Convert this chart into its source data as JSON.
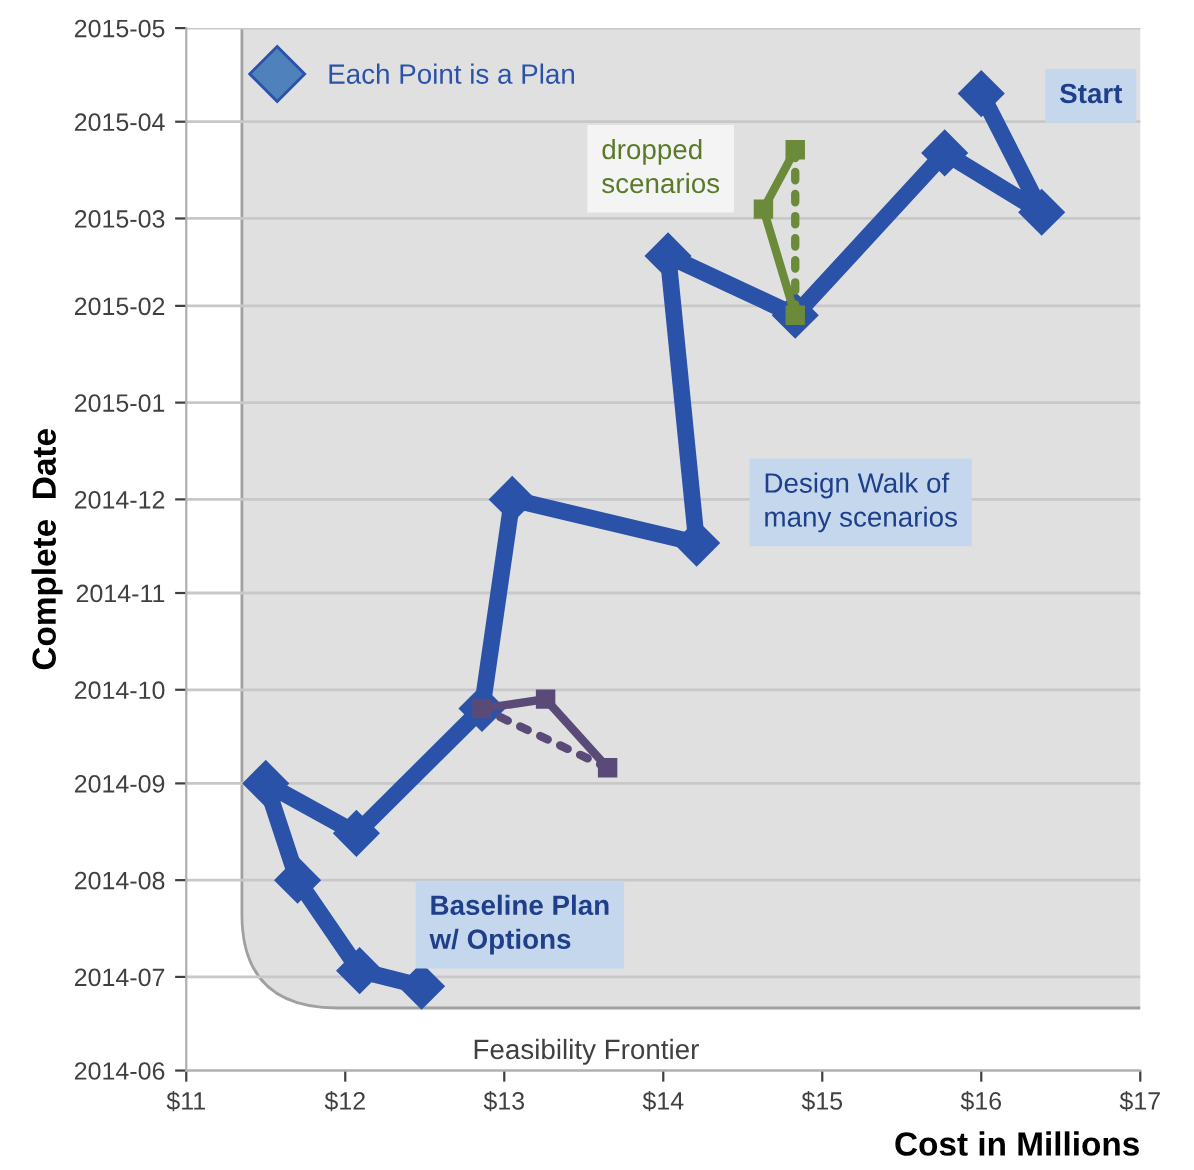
{
  "chart_data": {
    "type": "line",
    "orientation": "horizontal",
    "xlabel": "Cost in Millions",
    "ylabel": "Complete  Date",
    "xlim": [
      11,
      17
    ],
    "xticks": [
      {
        "value": 11,
        "label": "$11"
      },
      {
        "value": 12,
        "label": "$12"
      },
      {
        "value": 13,
        "label": "$13"
      },
      {
        "value": 14,
        "label": "$14"
      },
      {
        "value": 15,
        "label": "$15"
      },
      {
        "value": 16,
        "label": "$16"
      },
      {
        "value": 17,
        "label": "$17"
      }
    ],
    "ylim": [
      "2014-06",
      "2015-05"
    ],
    "yticks": [
      "2014-06",
      "2014-07",
      "2014-08",
      "2014-09",
      "2014-10",
      "2014-11",
      "2014-12",
      "2015-01",
      "2015-02",
      "2015-03",
      "2015-04",
      "2015-05"
    ],
    "grid": "y",
    "legend": "top left",
    "marker": "diamond",
    "line_style": "solid",
    "series": [
      {
        "name": "Each Point is a Plan",
        "color": "#2a52a8",
        "x": [
          "2015-04-10",
          "2015-03-03",
          "2015-03-22",
          "2015-01-29",
          "2015-02-17",
          "2014-11-17",
          "2014-12-01",
          "2014-09-25",
          "2014-08-16",
          "2014-09-01",
          "2014-08-01",
          "2014-07-03",
          "2014-06-28"
        ],
        "values": [
          16.0,
          16.38,
          15.77,
          14.83,
          14.03,
          14.21,
          13.05,
          12.86,
          12.07,
          11.5,
          11.7,
          12.09,
          12.48
        ]
      },
      {
        "color": "#6b8a3a",
        "marker": "square",
        "x": [
          "2015-01-29",
          "2015-03-04",
          "2015-03-23"
        ],
        "values": [
          14.83,
          14.63,
          14.83
        ]
      },
      {
        "color": "#6b8a3a",
        "marker": "none",
        "line_style": "dotted",
        "x": [
          "2015-03-23",
          "2015-01-29"
        ],
        "values": [
          14.83,
          14.83
        ]
      },
      {
        "color": "#5a4a78",
        "marker": "square",
        "x": [
          "2014-09-25",
          "2014-09-28",
          "2014-09-06"
        ],
        "values": [
          12.86,
          13.26,
          13.65
        ]
      },
      {
        "color": "#5a4a78",
        "marker": "none",
        "line_style": "dotted",
        "x": [
          "2014-09-06",
          "2014-09-25"
        ],
        "values": [
          13.65,
          12.86
        ]
      }
    ],
    "annotations": [
      "Start",
      "dropped scenarios",
      "Design Walk of many scenarios",
      "Baseline Plan w/ Options",
      "Feasibility Frontier"
    ]
  }
}
